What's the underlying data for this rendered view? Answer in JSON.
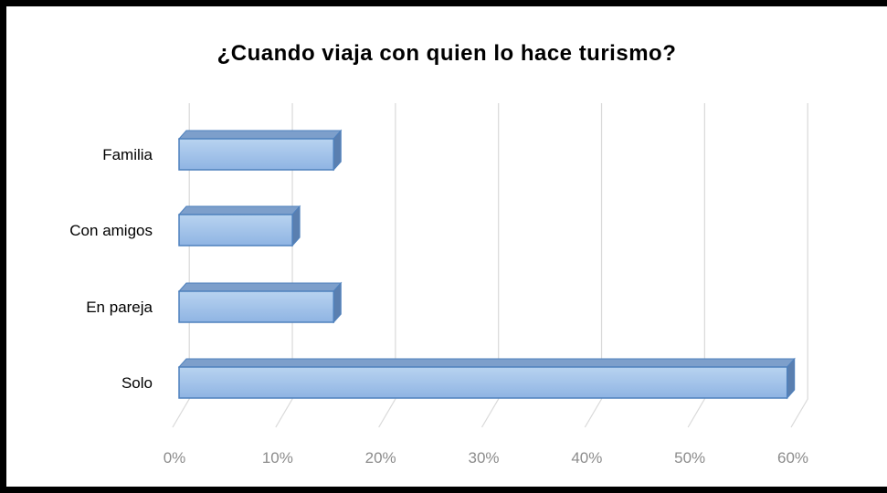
{
  "chart_data": {
    "type": "bar",
    "orientation": "horizontal",
    "style": "3d",
    "title": "¿Cuando  viaja  con  quien  lo  hace  turismo?",
    "categories": [
      "Familia",
      "Con amigos",
      "En pareja",
      "Solo"
    ],
    "values": [
      15,
      11,
      15,
      59
    ],
    "unit": "%",
    "xlim": [
      0,
      60
    ],
    "xticks": [
      "0%",
      "10%",
      "20%",
      "30%",
      "40%",
      "50%",
      "60%"
    ],
    "grid": true,
    "legend": false,
    "colors": {
      "bar_front_top": "#b8d3f0",
      "bar_front_bottom": "#8fb4e3",
      "bar_top": "#7d9fcb",
      "bar_side": "#5a7fb0",
      "bar_edge": "#4f81bd",
      "grid": "#d9d9d9",
      "tick_text": "#8c8c8c"
    }
  }
}
